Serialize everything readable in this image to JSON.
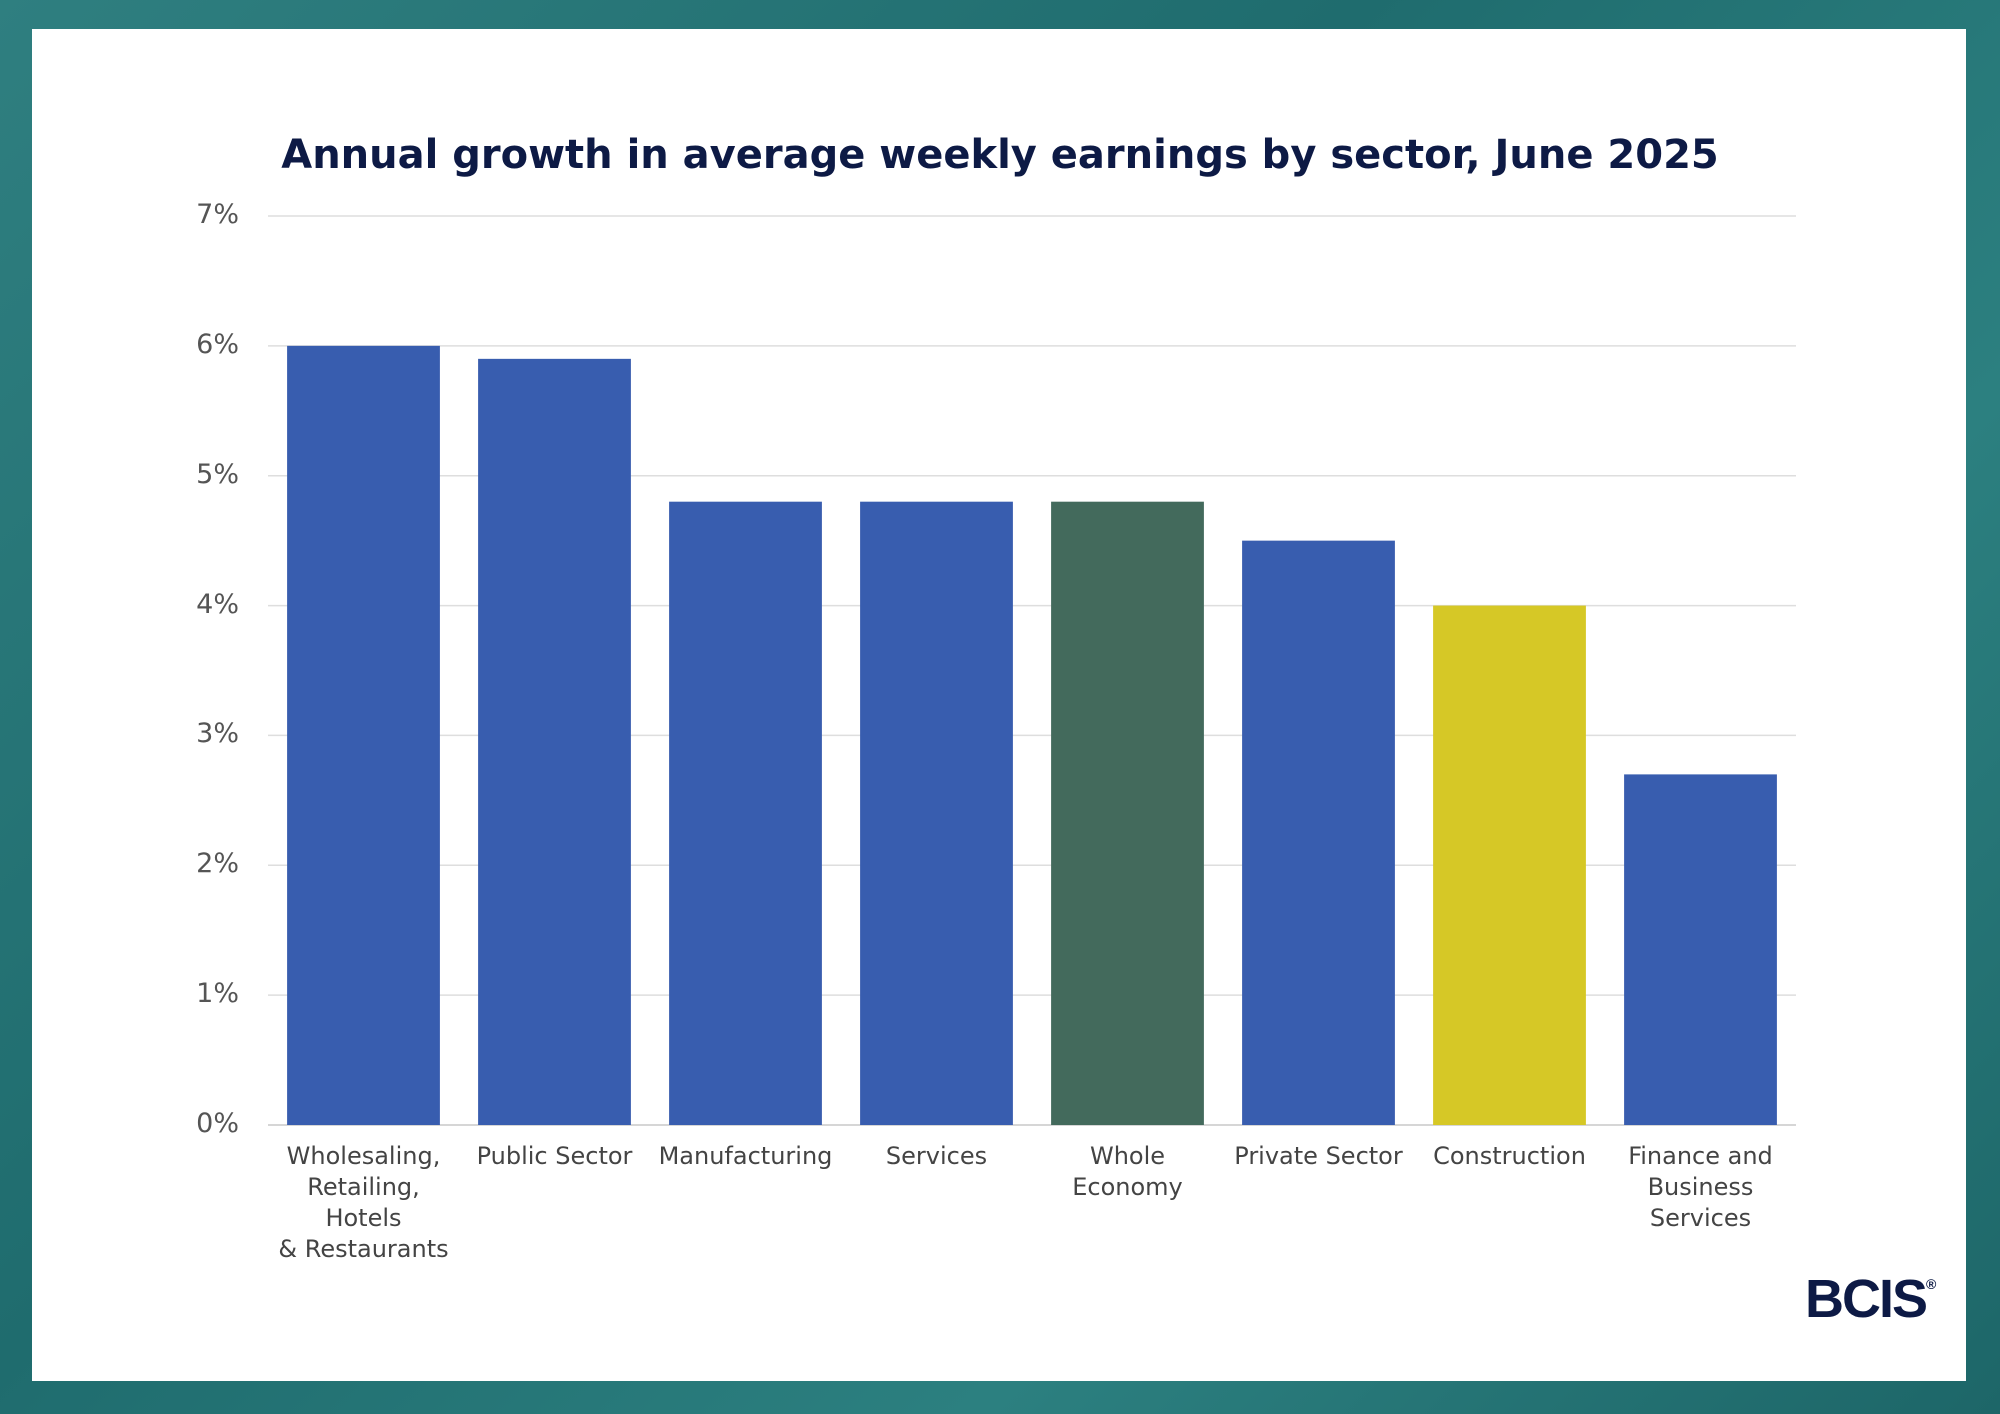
{
  "chart_data": {
    "type": "bar",
    "title": "Annual growth in average weekly earnings by sector, June 2025",
    "categories": [
      "Wholesaling,\nRetailing,\nHotels\n& Restaurants",
      "Public Sector",
      "Manufacturing",
      "Services",
      "Whole\nEconomy",
      "Private Sector",
      "Construction",
      "Finance and\nBusiness\nServices"
    ],
    "values": [
      6,
      5.9,
      4.8,
      4.8,
      4.8,
      4.5,
      4.0,
      2.7
    ],
    "colors": [
      "#385daf",
      "#385daf",
      "#385daf",
      "#385daf",
      "#436a5c",
      "#385daf",
      "#d6c826",
      "#385daf"
    ],
    "ylim": [
      0,
      7
    ],
    "yticks": [
      {
        "value": 0,
        "label": "0%"
      },
      {
        "value": 1,
        "label": "1%"
      },
      {
        "value": 2,
        "label": "2%"
      },
      {
        "value": 3,
        "label": "3%"
      },
      {
        "value": 4,
        "label": "4%"
      },
      {
        "value": 5,
        "label": "5%"
      },
      {
        "value": 6,
        "label": "6%"
      },
      {
        "value": 7,
        "label": "7%"
      }
    ],
    "grid": true
  },
  "logo": {
    "text": "BCIS",
    "mark": "®"
  }
}
